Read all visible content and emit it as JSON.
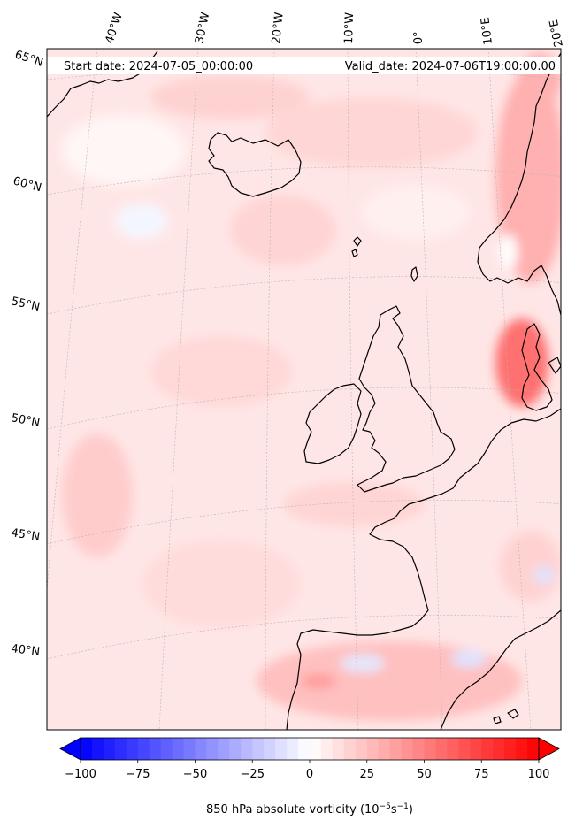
{
  "header": {
    "start_date": "Start date: 2024-07-05_00:00:00",
    "valid_date": "Valid_date: 2024-07-06T19:00:00.00"
  },
  "longitude_labels": [
    "40°W",
    "30°W",
    "20°W",
    "10°W",
    "0°",
    "10°E",
    "20°E"
  ],
  "latitude_labels": [
    "65°N",
    "60°N",
    "55°N",
    "50°N",
    "45°N",
    "40°N"
  ],
  "colorbar": {
    "ticks": [
      "−100",
      "−75",
      "−50",
      "−25",
      "0",
      "25",
      "50",
      "75",
      "100"
    ],
    "label_main": "850 hPa absolute vorticity (10",
    "label_exp1": "−5",
    "label_mid": "s",
    "label_exp2": "−1",
    "label_end": ")",
    "range": [
      -100,
      100
    ],
    "step": 5,
    "colormap": "bwr",
    "colors": {
      "min": "#0000ff",
      "mid": "#ffffff",
      "max": "#ff0000"
    }
  },
  "map": {
    "projection": "Lambert conformal",
    "coastline_color": "#000000",
    "background_tint": "#ffe4e4",
    "gridlines": true
  }
}
